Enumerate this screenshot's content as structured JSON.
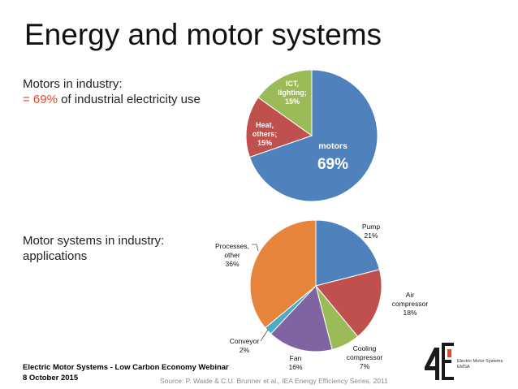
{
  "slide": {
    "title": "Energy and motor systems",
    "motors_line1": "Motors in industry:",
    "motors_line2_value": "= 69%",
    "motors_line2_rest": " of industrial electricity use",
    "apps_line1": "Motor systems in industry:",
    "apps_line2": "applications",
    "footer_line1": "Electric Motor Systems - Low Carbon Economy Webinar",
    "footer_line2": "8 October 2015",
    "source": "Source: P. Waide & C.U. Brunner et al., IEA Energy Efficiency Series, 2011",
    "logo_mark": "4E",
    "logo_line1": "Electric Motor Systems",
    "logo_line2": "EMSA"
  },
  "colors": {
    "accent": "#e2492f",
    "blue": "#4f81bd",
    "red": "#c0504d",
    "green": "#9bbb59",
    "purple": "#8064a2",
    "teal": "#4bacc6",
    "orange": "#e5843a"
  },
  "chart_data": [
    {
      "type": "pie",
      "title": "",
      "slices": [
        {
          "label": "motors",
          "value": 69,
          "value_text": "69%",
          "color": "#4f81bd"
        },
        {
          "label": "Heat, others;",
          "value": 15,
          "value_text": "15%",
          "color": "#c0504d"
        },
        {
          "label": "ICT, lighting;",
          "value": 15,
          "value_text": "15%",
          "color": "#9bbb59"
        }
      ]
    },
    {
      "type": "pie",
      "title": "",
      "slices": [
        {
          "label": "Pump",
          "value": 21,
          "value_text": "21%",
          "color": "#4f81bd"
        },
        {
          "label": "Air compressor",
          "value": 18,
          "value_text": "18%",
          "color": "#c0504d"
        },
        {
          "label": "Cooling compressor",
          "value": 7,
          "value_text": "7%",
          "color": "#9bbb59"
        },
        {
          "label": "Fan",
          "value": 16,
          "value_text": "16%",
          "color": "#8064a2"
        },
        {
          "label": "Conveyor",
          "value": 2,
          "value_text": "2%",
          "color": "#4bacc6"
        },
        {
          "label": "Processes, other",
          "value": 36,
          "value_text": "36%",
          "color": "#e5843a"
        }
      ]
    }
  ]
}
